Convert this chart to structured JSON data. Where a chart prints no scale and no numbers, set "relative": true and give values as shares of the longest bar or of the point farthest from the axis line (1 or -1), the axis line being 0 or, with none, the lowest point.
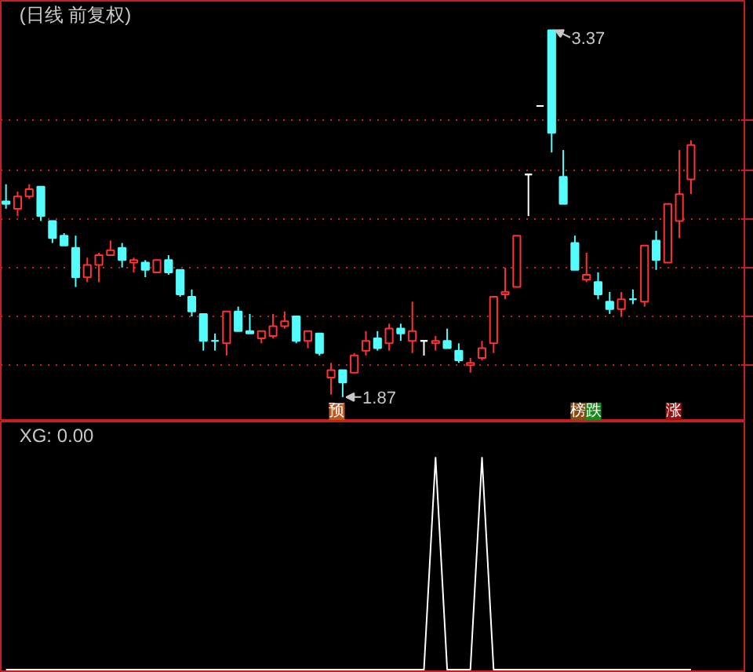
{
  "chart_data": [
    {
      "type": "candlestick",
      "title": "(日线 前复权)",
      "categories": [
        null,
        null,
        null,
        null,
        null,
        null,
        null,
        null,
        null,
        null,
        null,
        null,
        null,
        null,
        null,
        null,
        null,
        null,
        null,
        null,
        null,
        null,
        null,
        null,
        null,
        null,
        null,
        null,
        null,
        null,
        null,
        null,
        null,
        null,
        null,
        null,
        null,
        null,
        null,
        null,
        null,
        null,
        null,
        null,
        null,
        null,
        null,
        null,
        null,
        null,
        null,
        null,
        null,
        null,
        null,
        null,
        null,
        null,
        null,
        null
      ],
      "ohlc": [
        [
          2.67,
          2.74,
          2.64,
          2.66
        ],
        [
          2.64,
          2.71,
          2.61,
          2.69
        ],
        [
          2.69,
          2.74,
          2.68,
          2.72
        ],
        [
          2.73,
          2.73,
          2.59,
          2.61
        ],
        [
          2.59,
          2.59,
          2.5,
          2.52
        ],
        [
          2.53,
          2.54,
          2.49,
          2.49
        ],
        [
          2.48,
          2.53,
          2.32,
          2.36
        ],
        [
          2.36,
          2.44,
          2.34,
          2.41
        ],
        [
          2.41,
          2.46,
          2.34,
          2.45
        ],
        [
          2.45,
          2.51,
          2.45,
          2.47
        ],
        [
          2.48,
          2.5,
          2.4,
          2.43
        ],
        [
          2.42,
          2.44,
          2.38,
          2.43
        ],
        [
          2.42,
          2.43,
          2.36,
          2.39
        ],
        [
          2.38,
          2.43,
          2.38,
          2.43
        ],
        [
          2.43,
          2.45,
          2.37,
          2.38
        ],
        [
          2.39,
          2.39,
          2.28,
          2.29
        ],
        [
          2.28,
          2.31,
          2.2,
          2.22
        ],
        [
          2.21,
          2.21,
          2.06,
          2.1
        ],
        [
          2.1,
          2.13,
          2.06,
          2.1
        ],
        [
          2.09,
          2.22,
          2.04,
          2.22
        ],
        [
          2.22,
          2.24,
          2.14,
          2.14
        ],
        [
          2.14,
          2.21,
          2.13,
          2.13
        ],
        [
          2.11,
          2.14,
          2.09,
          2.14
        ],
        [
          2.12,
          2.21,
          2.11,
          2.16
        ],
        [
          2.16,
          2.22,
          2.15,
          2.18
        ],
        [
          2.2,
          2.2,
          2.09,
          2.1
        ],
        [
          2.1,
          2.14,
          2.07,
          2.14
        ],
        [
          2.13,
          2.13,
          2.04,
          2.05
        ],
        [
          1.95,
          2.01,
          1.88,
          1.98
        ],
        [
          1.98,
          1.98,
          1.87,
          1.93
        ],
        [
          1.97,
          2.05,
          1.97,
          2.04
        ],
        [
          2.06,
          2.14,
          2.04,
          2.1
        ],
        [
          2.11,
          2.14,
          2.06,
          2.07
        ],
        [
          2.09,
          2.17,
          2.06,
          2.15
        ],
        [
          2.15,
          2.17,
          2.1,
          2.13
        ],
        [
          2.1,
          2.26,
          2.05,
          2.14
        ],
        [
          2.1,
          2.1,
          2.04,
          2.1
        ],
        [
          2.09,
          2.12,
          2.06,
          2.1
        ],
        [
          2.1,
          2.15,
          2.07,
          2.07
        ],
        [
          2.06,
          2.09,
          2.01,
          2.02
        ],
        [
          2.0,
          2.03,
          1.97,
          2.01
        ],
        [
          2.03,
          2.1,
          2.02,
          2.07
        ],
        [
          2.09,
          2.28,
          2.05,
          2.28
        ],
        [
          2.29,
          2.4,
          2.27,
          2.3
        ],
        [
          2.32,
          2.53,
          2.32,
          2.53
        ],
        [
          2.78,
          2.78,
          2.61,
          2.78
        ],
        [
          3.06,
          3.06,
          3.06,
          3.06
        ],
        [
          3.37,
          3.37,
          2.87,
          2.95
        ],
        [
          2.77,
          2.88,
          2.66,
          2.66
        ],
        [
          2.5,
          2.53,
          2.39,
          2.39
        ],
        [
          2.35,
          2.46,
          2.34,
          2.37
        ],
        [
          2.34,
          2.38,
          2.27,
          2.29
        ],
        [
          2.26,
          2.3,
          2.21,
          2.23
        ],
        [
          2.23,
          2.3,
          2.2,
          2.27
        ],
        [
          2.27,
          2.31,
          2.25,
          2.27
        ],
        [
          2.26,
          2.49,
          2.24,
          2.49
        ],
        [
          2.51,
          2.55,
          2.39,
          2.43
        ],
        [
          2.42,
          2.66,
          2.42,
          2.66
        ],
        [
          2.59,
          2.88,
          2.52,
          2.7
        ],
        [
          2.76,
          2.92,
          2.7,
          2.9
        ]
      ],
      "colors": [
        "#54fcfc",
        "#ff3232",
        "#ff3232",
        "#54fcfc",
        "#54fcfc",
        "#54fcfc",
        "#54fcfc",
        "#ff3232",
        "#ff3232",
        "#ff3232",
        "#54fcfc",
        "#ff3232",
        "#54fcfc",
        "#ff3232",
        "#54fcfc",
        "#54fcfc",
        "#54fcfc",
        "#54fcfc",
        "#54fcfc",
        "#ff3232",
        "#54fcfc",
        "#54fcfc",
        "#ff3232",
        "#ff3232",
        "#ff3232",
        "#54fcfc",
        "#ff3232",
        "#54fcfc",
        "#ff3232",
        "#54fcfc",
        "#ff3232",
        "#ff3232",
        "#54fcfc",
        "#ff3232",
        "#54fcfc",
        "#ff3232",
        "#ffffff",
        "#ff3232",
        "#54fcfc",
        "#54fcfc",
        "#ff3232",
        "#ff3232",
        "#ff3232",
        "#ff3232",
        "#ff3232",
        "#ffffff",
        "#ffffff",
        "#54fcfc",
        "#54fcfc",
        "#54fcfc",
        "#ff3232",
        "#54fcfc",
        "#54fcfc",
        "#ff3232",
        "#54fcfc",
        "#ff3232",
        "#54fcfc",
        "#ff3232",
        "#ff3232",
        "#ff3232"
      ],
      "ylim": [
        1.77,
        3.49
      ],
      "yticks": [
        {
          "value": 2.0,
          "label": null
        },
        {
          "value": 2.2,
          "label": null
        },
        {
          "value": 2.4,
          "label": null
        },
        {
          "value": 2.6,
          "label": null
        },
        {
          "value": 2.8,
          "label": null
        },
        {
          "value": 3.0,
          "label": null
        }
      ],
      "grid": "y",
      "annotations": [
        "3.37",
        "1.87",
        "预",
        "榜",
        "跌",
        "涨"
      ]
    },
    {
      "type": "line",
      "title": "XG: 0.00",
      "relative": true,
      "categories": [
        null,
        null,
        null,
        null,
        null,
        null,
        null,
        null,
        null,
        null,
        null,
        null,
        null,
        null,
        null,
        null,
        null,
        null,
        null,
        null,
        null,
        null,
        null,
        null,
        null,
        null,
        null,
        null,
        null,
        null,
        null,
        null,
        null,
        null,
        null,
        null,
        null,
        null,
        null,
        null,
        null,
        null,
        null,
        null,
        null,
        null,
        null,
        null,
        null,
        null,
        null,
        null,
        null,
        null,
        null,
        null,
        null,
        null,
        null,
        null
      ],
      "series": [
        {
          "color": "#ffffff",
          "values": [
            0,
            0,
            0,
            0,
            0,
            0,
            0,
            0,
            0,
            0,
            0,
            0,
            0,
            0,
            0,
            0,
            0,
            0,
            0,
            0,
            0,
            0,
            0,
            0,
            0,
            0,
            0,
            0,
            0,
            0,
            0,
            0,
            0,
            0,
            0,
            0,
            0,
            1,
            0,
            0,
            0,
            1,
            0,
            0,
            0,
            0,
            0,
            0,
            0,
            0,
            0,
            0,
            0,
            0,
            0,
            0,
            0,
            0,
            0,
            0
          ]
        }
      ]
    }
  ]
}
